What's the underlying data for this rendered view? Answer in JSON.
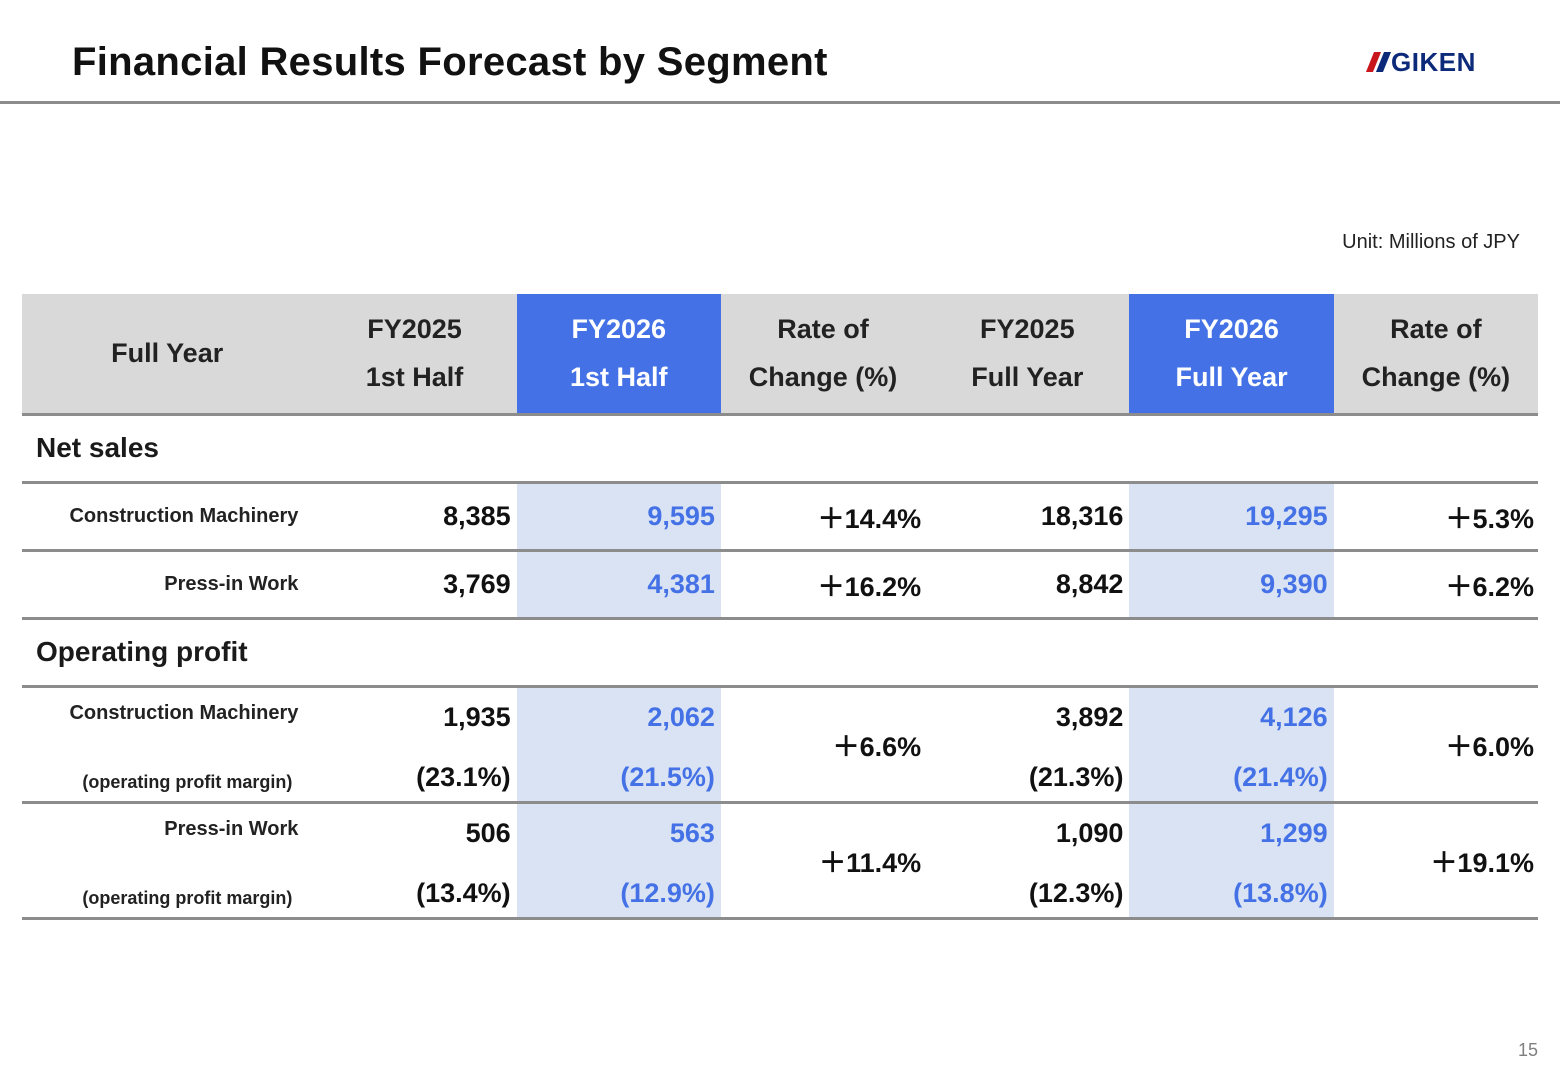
{
  "header": {
    "title": "Financial Results Forecast by Segment",
    "logo_text": "GIKEN",
    "colors": {
      "logo_red": "#c8161d",
      "logo_navy": "#0d2a7a"
    }
  },
  "unit_label": "Unit: Millions of JPY",
  "colors": {
    "accent": "#4472e6",
    "accent_light": "#dae3f3",
    "header_gray": "#d9d9d9"
  },
  "table": {
    "headers": [
      {
        "line1": "Full Year",
        "line2": ""
      },
      {
        "line1": "FY2025",
        "line2": "1st Half"
      },
      {
        "line1": "FY2026",
        "line2": "1st Half"
      },
      {
        "line1": "Rate of",
        "line2": "Change (%)"
      },
      {
        "line1": "FY2025",
        "line2": "Full Year"
      },
      {
        "line1": "FY2026",
        "line2": "Full Year"
      },
      {
        "line1": "Rate of",
        "line2": "Change (%)"
      }
    ],
    "net_sales": {
      "label": "Net sales",
      "rows": [
        {
          "label": "Construction Machinery",
          "fy25_h1": "8,385",
          "fy26_h1": "9,595",
          "rate_h1": "＋14.4%",
          "fy25_fy": "18,316",
          "fy26_fy": "19,295",
          "rate_fy": "＋5.3%"
        },
        {
          "label": "Press-in Work",
          "fy25_h1": "3,769",
          "fy26_h1": "4,381",
          "rate_h1": "＋16.2%",
          "fy25_fy": "8,842",
          "fy26_fy": "9,390",
          "rate_fy": "＋6.2%"
        }
      ]
    },
    "operating_profit": {
      "label": "Operating profit",
      "rows": [
        {
          "label": "Construction Machinery",
          "sublabel": "(operating profit margin)",
          "fy25_h1": "1,935",
          "fy25_h1_m": "(23.1%)",
          "fy26_h1": "2,062",
          "fy26_h1_m": "(21.5%)",
          "rate_h1": "＋6.6%",
          "fy25_fy": "3,892",
          "fy25_fy_m": "(21.3%)",
          "fy26_fy": "4,126",
          "fy26_fy_m": "(21.4%)",
          "rate_fy": "＋6.0%"
        },
        {
          "label": "Press-in Work",
          "sublabel": "(operating profit margin)",
          "fy25_h1": "506",
          "fy25_h1_m": "(13.4%)",
          "fy26_h1": "563",
          "fy26_h1_m": "(12.9%)",
          "rate_h1": "＋11.4%",
          "fy25_fy": "1,090",
          "fy25_fy_m": "(12.3%)",
          "fy26_fy": "1,299",
          "fy26_fy_m": "(13.8%)",
          "rate_fy": "＋19.1%"
        }
      ]
    }
  },
  "page_number": "15"
}
